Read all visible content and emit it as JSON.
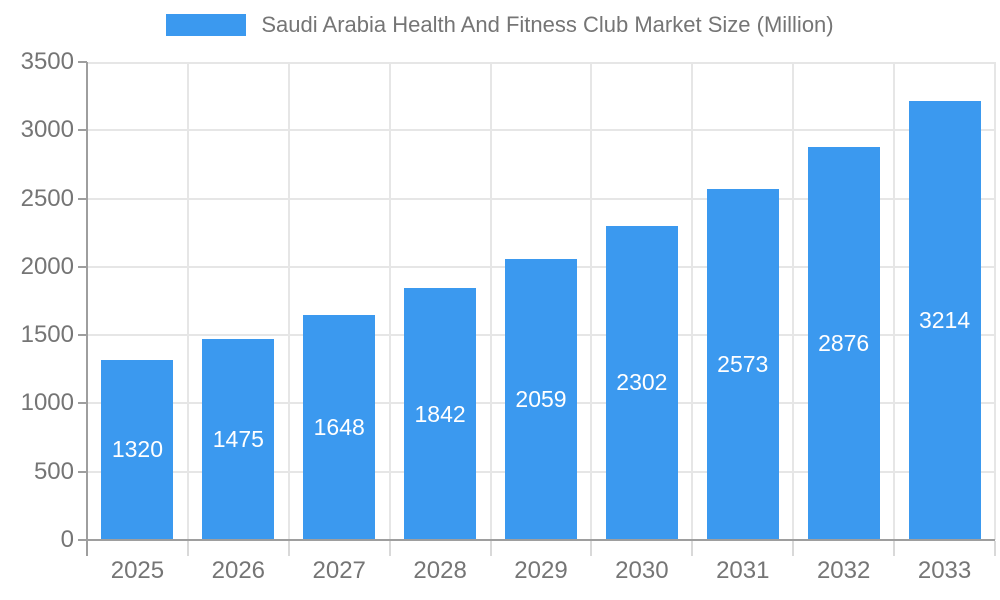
{
  "legend": {
    "label": "Saudi Arabia Health And Fitness Club Market Size (Million)"
  },
  "colors": {
    "background": "#ffffff",
    "bar": "#3b99ef",
    "bar_label": "#ffffff",
    "legend_text": "#757575",
    "axis_text": "#757575",
    "gridline": "#e6e6e6",
    "axis_line": "#9e9e9e",
    "boundary_tick": "#d9d9d9"
  },
  "chart_data": {
    "type": "bar",
    "title": "Saudi Arabia Health And Fitness Club Market Size (Million)",
    "categories": [
      "2025",
      "2026",
      "2027",
      "2028",
      "2029",
      "2030",
      "2031",
      "2032",
      "2033"
    ],
    "values": [
      1320,
      1475,
      1648,
      1842,
      2059,
      2302,
      2573,
      2876,
      3214
    ],
    "xlabel": "",
    "ylabel": "",
    "ylim": [
      0,
      3500
    ],
    "ytick_step": 500,
    "grid": true,
    "legend_position": "top",
    "bar_value_labels": true
  }
}
